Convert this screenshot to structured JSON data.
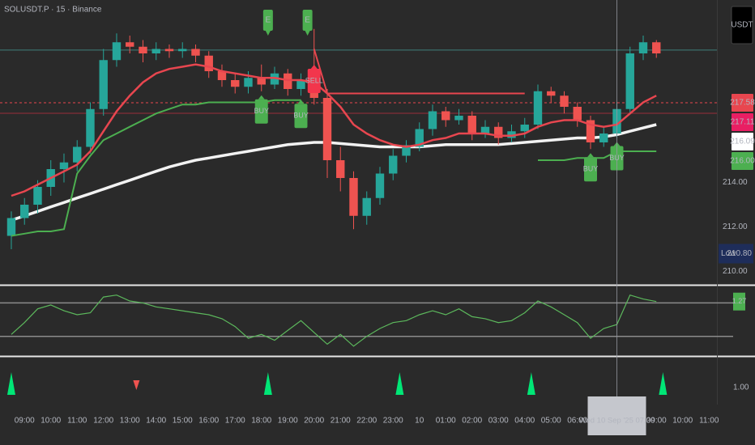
{
  "chart_data": {
    "type": "candlestick",
    "title": "SOLUSDT.P · 15 · Binance",
    "currency": "USDT",
    "xlim": [
      -0.86,
      53.6
    ],
    "ylim": [
      209.4,
      222.2
    ],
    "yticks": [
      {
        "value": 214,
        "label": "214.00"
      },
      {
        "value": 212,
        "label": "212.00"
      },
      {
        "value": 210,
        "label": "210.00"
      }
    ],
    "xticks": [
      {
        "value": 1,
        "label": "09:00"
      },
      {
        "value": 3,
        "label": "10:00"
      },
      {
        "value": 5,
        "label": "11:00"
      },
      {
        "value": 7,
        "label": "12:00"
      },
      {
        "value": 9,
        "label": "13:00"
      },
      {
        "value": 11,
        "label": "14:00"
      },
      {
        "value": 13,
        "label": "15:00"
      },
      {
        "value": 15,
        "label": "16:00"
      },
      {
        "value": 17,
        "label": "17:00"
      },
      {
        "value": 19,
        "label": "18:00"
      },
      {
        "value": 21,
        "label": "19:00"
      },
      {
        "value": 23,
        "label": "20:00"
      },
      {
        "value": 25,
        "label": "21:00"
      },
      {
        "value": 27,
        "label": "22:00"
      },
      {
        "value": 29,
        "label": "23:00"
      },
      {
        "value": 31,
        "label": "10"
      },
      {
        "value": 33,
        "label": "01:00"
      },
      {
        "value": 35,
        "label": "02:00"
      },
      {
        "value": 37,
        "label": "03:00"
      },
      {
        "value": 39,
        "label": "04:00"
      },
      {
        "value": 41,
        "label": "05:00"
      },
      {
        "value": 43,
        "label": "06:00"
      },
      {
        "value": 49,
        "label": "09:00"
      },
      {
        "value": 51,
        "label": "10:00"
      },
      {
        "value": 53,
        "label": "11:00"
      }
    ],
    "up_color": "#26a69a",
    "down_color": "#ef5350",
    "candles": [
      [
        211.6,
        212.7,
        211.0,
        212.4
      ],
      [
        212.4,
        213.3,
        212.1,
        213.0
      ],
      [
        213.0,
        214.1,
        212.6,
        213.8
      ],
      [
        213.8,
        215.0,
        213.4,
        214.6
      ],
      [
        214.6,
        215.3,
        214.0,
        214.9
      ],
      [
        214.9,
        215.9,
        214.5,
        215.6
      ],
      [
        215.6,
        217.6,
        215.3,
        217.3
      ],
      [
        217.3,
        220.0,
        217.0,
        219.5
      ],
      [
        219.5,
        220.7,
        219.2,
        220.3
      ],
      [
        220.3,
        220.6,
        219.8,
        220.1
      ],
      [
        220.1,
        220.4,
        219.4,
        219.8
      ],
      [
        219.8,
        220.3,
        219.5,
        220.0
      ],
      [
        220.0,
        220.2,
        219.6,
        219.9
      ],
      [
        219.9,
        220.3,
        219.6,
        220.0
      ],
      [
        220.0,
        220.2,
        219.4,
        219.7
      ],
      [
        219.7,
        219.9,
        218.7,
        219.0
      ],
      [
        219.0,
        219.3,
        218.3,
        218.6
      ],
      [
        218.6,
        218.9,
        218.0,
        218.3
      ],
      [
        218.3,
        219.0,
        218.0,
        218.7
      ],
      [
        218.7,
        219.3,
        218.1,
        218.4
      ],
      [
        218.4,
        219.2,
        218.2,
        218.9
      ],
      [
        218.9,
        219.1,
        217.9,
        218.2
      ],
      [
        218.2,
        218.9,
        217.9,
        218.6
      ],
      [
        218.6,
        220.9,
        217.5,
        217.8
      ],
      [
        217.8,
        218.2,
        214.2,
        215.0
      ],
      [
        215.0,
        215.6,
        213.6,
        214.2
      ],
      [
        214.2,
        214.5,
        211.9,
        212.5
      ],
      [
        212.5,
        213.6,
        212.1,
        213.3
      ],
      [
        213.3,
        214.7,
        213.0,
        214.4
      ],
      [
        214.4,
        215.5,
        214.1,
        215.2
      ],
      [
        215.2,
        215.9,
        214.9,
        215.6
      ],
      [
        215.6,
        216.7,
        215.4,
        216.4
      ],
      [
        216.4,
        217.5,
        216.1,
        217.2
      ],
      [
        217.2,
        217.4,
        216.5,
        216.8
      ],
      [
        216.8,
        217.3,
        216.6,
        217.0
      ],
      [
        217.0,
        217.2,
        215.9,
        216.2
      ],
      [
        216.2,
        216.8,
        216.0,
        216.5
      ],
      [
        216.5,
        216.7,
        215.7,
        216.0
      ],
      [
        216.0,
        216.6,
        215.8,
        216.3
      ],
      [
        216.3,
        216.9,
        216.0,
        216.6
      ],
      [
        216.6,
        218.4,
        216.4,
        218.1
      ],
      [
        218.1,
        218.3,
        217.6,
        217.9
      ],
      [
        217.9,
        218.1,
        217.1,
        217.4
      ],
      [
        217.4,
        217.6,
        216.5,
        216.8
      ],
      [
        216.8,
        217.0,
        215.5,
        215.8
      ],
      [
        215.8,
        216.5,
        215.6,
        216.2
      ],
      [
        216.2,
        217.6,
        216.0,
        217.3
      ],
      [
        217.3,
        220.1,
        217.1,
        219.8
      ],
      [
        219.8,
        220.6,
        219.5,
        220.3
      ],
      [
        220.3,
        220.4,
        219.6,
        219.8
      ]
    ],
    "lines": [
      {
        "color": "#e8464f",
        "width": 2.5,
        "values": [
          213.4,
          213.6,
          213.9,
          214.2,
          214.5,
          214.8,
          215.4,
          216.3,
          217.2,
          217.9,
          218.5,
          218.9,
          219.1,
          219.2,
          219.3,
          219.2,
          219.0,
          218.9,
          218.8,
          218.7,
          218.7,
          218.6,
          218.6,
          218.5,
          218.0,
          217.4,
          216.6,
          216.2,
          215.9,
          215.7,
          215.6,
          215.7,
          215.9,
          216.0,
          216.2,
          216.2,
          216.2,
          216.1,
          216.1,
          216.2,
          216.5,
          216.7,
          216.8,
          216.8,
          216.6,
          216.5,
          216.6,
          217.1,
          217.6,
          217.9
        ]
      },
      {
        "color": "#f2f2f2",
        "width": 3.5,
        "values": [
          212.3,
          212.5,
          212.7,
          212.9,
          213.1,
          213.3,
          213.5,
          213.7,
          213.9,
          214.1,
          214.3,
          214.5,
          214.7,
          214.85,
          215.0,
          215.1,
          215.2,
          215.3,
          215.4,
          215.5,
          215.6,
          215.7,
          215.75,
          215.8,
          215.8,
          215.75,
          215.7,
          215.65,
          215.6,
          215.6,
          215.6,
          215.6,
          215.65,
          215.7,
          215.7,
          215.7,
          215.7,
          215.7,
          215.75,
          215.8,
          215.85,
          215.9,
          215.95,
          216.0,
          216.0,
          216.05,
          216.15,
          216.3,
          216.45,
          216.6
        ]
      },
      {
        "color": "#4caf50",
        "width": 2,
        "values": [
          211.6,
          211.7,
          211.8,
          211.8,
          211.9,
          214.4,
          215.2,
          215.9,
          216.2,
          216.5,
          216.8,
          217.1,
          217.3,
          217.5,
          217.5,
          217.6,
          217.6,
          217.6,
          217.6,
          217.6,
          217.7,
          217.7,
          217.7,
          null,
          null,
          null,
          null,
          null,
          null,
          null,
          null,
          null,
          null,
          null,
          null,
          null,
          null,
          null,
          null,
          null,
          215.0,
          215.0,
          215.0,
          215.1,
          215.1,
          215.1,
          215.4,
          215.4,
          215.4,
          215.4
        ]
      },
      {
        "color": "#e8464f",
        "width": 2,
        "values": [
          null,
          null,
          null,
          null,
          null,
          null,
          null,
          null,
          null,
          null,
          null,
          null,
          null,
          null,
          null,
          null,
          null,
          null,
          null,
          null,
          null,
          null,
          null,
          220.0,
          218.0,
          218.0,
          218.0,
          218.0,
          218.0,
          218.0,
          218.0,
          218.0,
          218.0,
          218.0,
          218.0,
          218.0,
          218.0,
          218.0,
          218.0,
          218.0,
          null,
          null,
          null,
          null,
          null,
          null,
          null,
          null,
          null,
          null
        ]
      }
    ],
    "levels": [
      {
        "value": 219.95,
        "color": "#3f7f7a",
        "dash": "none"
      },
      {
        "value": 217.58,
        "color": "#e8464f",
        "dash": "3 3"
      },
      {
        "value": 217.11,
        "color": "#9b2f3b",
        "dash": "none"
      }
    ],
    "price_tags": [
      {
        "value": 217.58,
        "bg": "#e8464f",
        "fg": "#ffffff"
      },
      {
        "value": 217.11,
        "bg": "#e91e63",
        "fg": "#ffffff"
      },
      {
        "value": 216.09,
        "bg": "#ffffff",
        "fg": "#000000"
      },
      {
        "value": 216.0,
        "label": "216.00",
        "bg": "#4caf50",
        "fg": "#ffffff"
      }
    ],
    "low_tag": {
      "name": "Low",
      "value": 210.8,
      "label": "210.80"
    },
    "signals": [
      {
        "index": 19,
        "label": "BUY"
      },
      {
        "index": 22,
        "label": "BUY"
      },
      {
        "index": 23,
        "label": "SELL"
      },
      {
        "index": 44,
        "label": "BUY"
      },
      {
        "index": 46,
        "label": "BUY"
      }
    ],
    "entries": [
      {
        "index": 19.5,
        "label": "E"
      },
      {
        "index": 22.5,
        "label": "E"
      }
    ],
    "oscillator": {
      "color": "#5cb85c",
      "ylim": [
        -1.5,
        2.0
      ],
      "levels": [
        1.2,
        -0.5
      ],
      "last": 1.27,
      "values": [
        -0.4,
        0.2,
        0.9,
        1.1,
        0.8,
        0.6,
        0.7,
        1.5,
        1.6,
        1.3,
        1.2,
        1.0,
        0.9,
        0.8,
        0.7,
        0.6,
        0.4,
        0.0,
        -0.6,
        -0.4,
        -0.7,
        -0.2,
        0.3,
        -0.3,
        -0.9,
        -0.4,
        -1.0,
        -0.5,
        -0.1,
        0.2,
        0.3,
        0.6,
        0.8,
        0.6,
        0.9,
        0.5,
        0.4,
        0.2,
        0.3,
        0.7,
        1.3,
        1.0,
        0.6,
        0.2,
        -0.6,
        -0.1,
        0.1,
        1.6,
        1.4,
        1.27
      ]
    },
    "marker_pane": {
      "ylim": [
        0.6,
        1.7
      ],
      "yticks": [
        {
          "value": 1,
          "label": "1.00"
        }
      ],
      "up": [
        0,
        19.5,
        29.5,
        39.5,
        49.5
      ],
      "down": [
        9.5
      ]
    },
    "crosshair": {
      "index": 46,
      "label": "Wed 10 Sep '25  07:30"
    }
  }
}
